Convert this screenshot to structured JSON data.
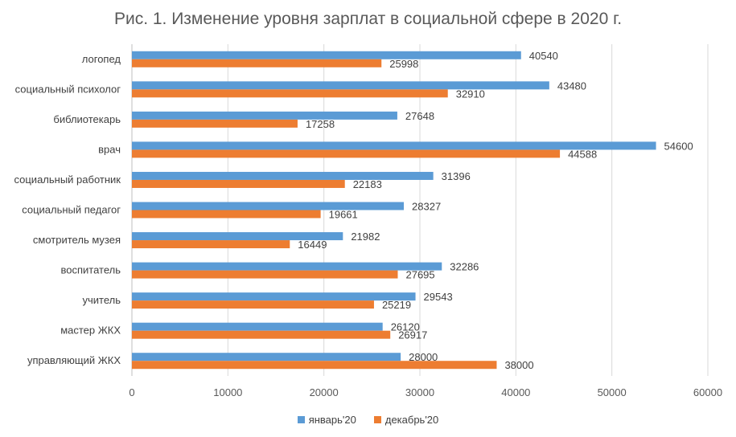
{
  "chart_data": {
    "type": "bar",
    "orientation": "horizontal",
    "title": "Рис. 1. Изменение уровня зарплат в социальной сфере в 2020 г.",
    "categories": [
      "логопед",
      "социальный психолог",
      "библиотекарь",
      "врач",
      "социальный работник",
      "социальный педагог",
      "смотритель музея",
      "воспитатель",
      "учитель",
      "мастер ЖКХ",
      "управляющий ЖКХ"
    ],
    "series": [
      {
        "name": "январь'20",
        "color": "#5b9bd5",
        "values": [
          40540,
          43480,
          27648,
          54600,
          31396,
          28327,
          21982,
          32286,
          29543,
          26120,
          28000
        ]
      },
      {
        "name": "декабрь'20",
        "color": "#ed7d31",
        "values": [
          25998,
          32910,
          17258,
          44588,
          22183,
          19661,
          16449,
          27695,
          25219,
          26917,
          38000
        ]
      }
    ],
    "xlim": [
      0,
      60000
    ],
    "xticks": [
      "0",
      "10000",
      "20000",
      "30000",
      "40000",
      "50000",
      "60000"
    ],
    "grid": true,
    "legend_position": "bottom"
  }
}
